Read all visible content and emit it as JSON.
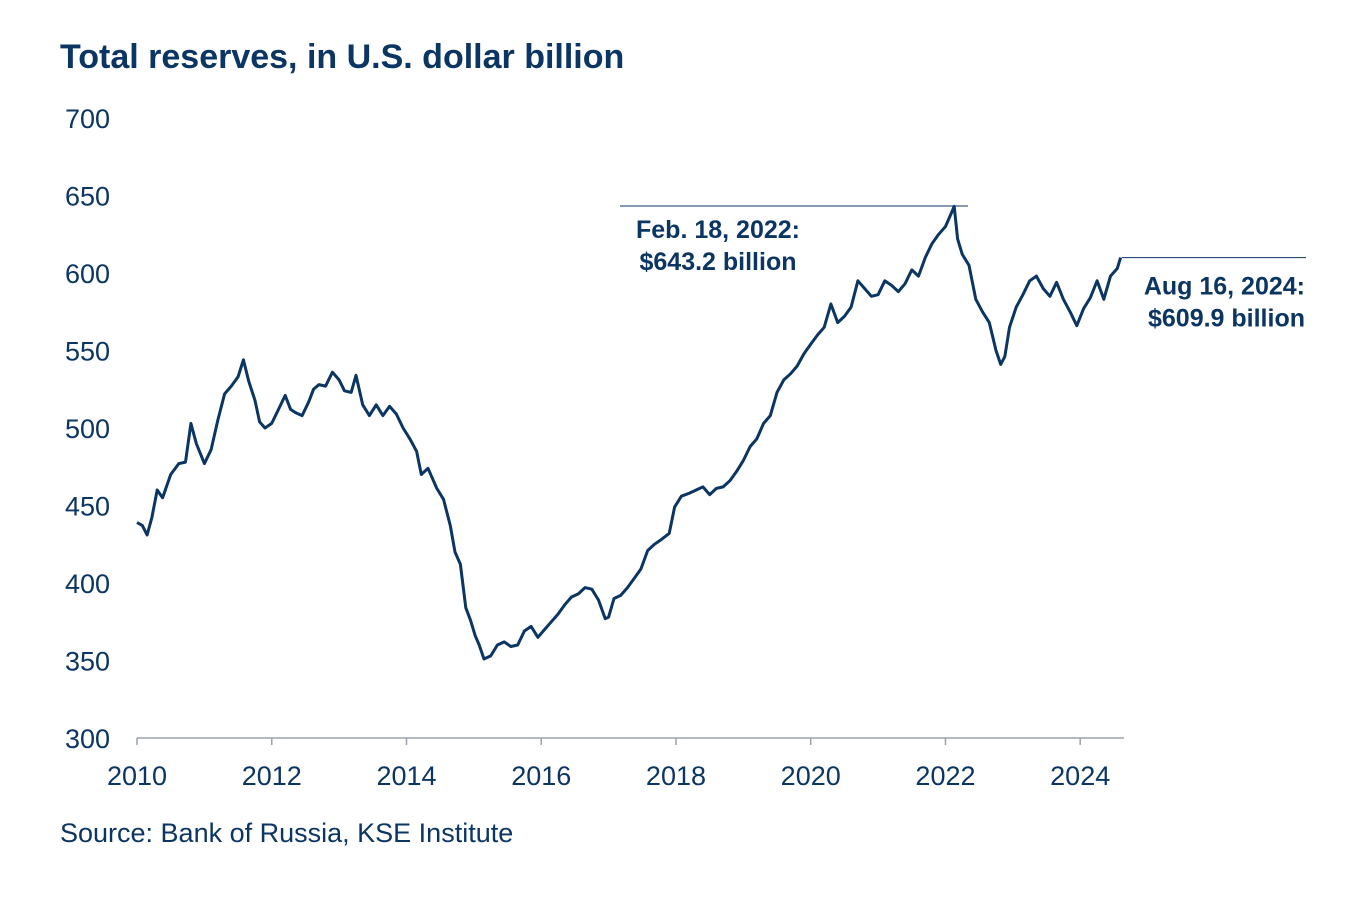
{
  "title": "Total reserves, in U.S. dollar billion",
  "source": "Source: Bank of Russia, KSE Institute",
  "colors": {
    "line": "#0b3562",
    "text": "#0b3562",
    "axis": "#9aa3ad"
  },
  "chart_data": {
    "type": "line",
    "title": "Total reserves, in U.S. dollar billion",
    "xlabel": "",
    "ylabel": "",
    "xlim": [
      2010,
      2024.65
    ],
    "ylim": [
      300,
      700
    ],
    "x_ticks": [
      "2010",
      "2012",
      "2014",
      "2016",
      "2018",
      "2020",
      "2022",
      "2024"
    ],
    "y_ticks": [
      "300",
      "350",
      "400",
      "450",
      "500",
      "550",
      "600",
      "650",
      "700"
    ],
    "grid": false,
    "series": [
      {
        "points": [
          [
            2010.0,
            439
          ],
          [
            2010.08,
            437
          ],
          [
            2010.15,
            431
          ],
          [
            2010.22,
            442
          ],
          [
            2010.3,
            460
          ],
          [
            2010.38,
            455
          ],
          [
            2010.5,
            470
          ],
          [
            2010.62,
            477
          ],
          [
            2010.72,
            478
          ],
          [
            2010.8,
            503
          ],
          [
            2010.88,
            490
          ],
          [
            2011.0,
            477
          ],
          [
            2011.1,
            486
          ],
          [
            2011.2,
            505
          ],
          [
            2011.3,
            522
          ],
          [
            2011.4,
            527
          ],
          [
            2011.5,
            533
          ],
          [
            2011.58,
            544
          ],
          [
            2011.66,
            530
          ],
          [
            2011.75,
            518
          ],
          [
            2011.82,
            504
          ],
          [
            2011.9,
            500
          ],
          [
            2012.0,
            503
          ],
          [
            2012.1,
            512
          ],
          [
            2012.2,
            521
          ],
          [
            2012.28,
            512
          ],
          [
            2012.35,
            510
          ],
          [
            2012.45,
            508
          ],
          [
            2012.55,
            517
          ],
          [
            2012.62,
            525
          ],
          [
            2012.7,
            528
          ],
          [
            2012.8,
            527
          ],
          [
            2012.9,
            536
          ],
          [
            2013.0,
            531
          ],
          [
            2013.08,
            524
          ],
          [
            2013.18,
            523
          ],
          [
            2013.25,
            534
          ],
          [
            2013.35,
            515
          ],
          [
            2013.45,
            508
          ],
          [
            2013.55,
            515
          ],
          [
            2013.65,
            508
          ],
          [
            2013.75,
            514
          ],
          [
            2013.85,
            509
          ],
          [
            2013.95,
            500
          ],
          [
            2014.05,
            493
          ],
          [
            2014.15,
            485
          ],
          [
            2014.22,
            470
          ],
          [
            2014.32,
            474
          ],
          [
            2014.45,
            461
          ],
          [
            2014.55,
            454
          ],
          [
            2014.65,
            437
          ],
          [
            2014.72,
            420
          ],
          [
            2014.8,
            412
          ],
          [
            2014.88,
            384
          ],
          [
            2014.95,
            376
          ],
          [
            2015.02,
            366
          ],
          [
            2015.08,
            360
          ],
          [
            2015.15,
            351
          ],
          [
            2015.25,
            353
          ],
          [
            2015.35,
            360
          ],
          [
            2015.45,
            362
          ],
          [
            2015.55,
            359
          ],
          [
            2015.65,
            360
          ],
          [
            2015.75,
            369
          ],
          [
            2015.85,
            372
          ],
          [
            2015.95,
            365
          ],
          [
            2016.05,
            370
          ],
          [
            2016.15,
            375
          ],
          [
            2016.25,
            380
          ],
          [
            2016.35,
            386
          ],
          [
            2016.45,
            391
          ],
          [
            2016.55,
            393
          ],
          [
            2016.65,
            397
          ],
          [
            2016.75,
            396
          ],
          [
            2016.85,
            389
          ],
          [
            2016.95,
            377
          ],
          [
            2017.0,
            378
          ],
          [
            2017.08,
            390
          ],
          [
            2017.18,
            392
          ],
          [
            2017.28,
            397
          ],
          [
            2017.38,
            403
          ],
          [
            2017.48,
            409
          ],
          [
            2017.58,
            421
          ],
          [
            2017.68,
            425
          ],
          [
            2017.78,
            428
          ],
          [
            2017.9,
            432
          ],
          [
            2017.98,
            449
          ],
          [
            2018.08,
            456
          ],
          [
            2018.2,
            458
          ],
          [
            2018.3,
            460
          ],
          [
            2018.4,
            462
          ],
          [
            2018.5,
            457
          ],
          [
            2018.6,
            461
          ],
          [
            2018.7,
            462
          ],
          [
            2018.8,
            466
          ],
          [
            2018.9,
            472
          ],
          [
            2019.0,
            479
          ],
          [
            2019.1,
            488
          ],
          [
            2019.2,
            493
          ],
          [
            2019.3,
            503
          ],
          [
            2019.4,
            508
          ],
          [
            2019.5,
            523
          ],
          [
            2019.6,
            531
          ],
          [
            2019.7,
            535
          ],
          [
            2019.8,
            540
          ],
          [
            2019.9,
            548
          ],
          [
            2020.0,
            554
          ],
          [
            2020.1,
            560
          ],
          [
            2020.2,
            565
          ],
          [
            2020.3,
            580
          ],
          [
            2020.4,
            568
          ],
          [
            2020.5,
            572
          ],
          [
            2020.6,
            578
          ],
          [
            2020.7,
            595
          ],
          [
            2020.8,
            590
          ],
          [
            2020.9,
            585
          ],
          [
            2021.0,
            586
          ],
          [
            2021.1,
            595
          ],
          [
            2021.2,
            592
          ],
          [
            2021.3,
            588
          ],
          [
            2021.4,
            593
          ],
          [
            2021.5,
            602
          ],
          [
            2021.6,
            598
          ],
          [
            2021.7,
            610
          ],
          [
            2021.8,
            619
          ],
          [
            2021.9,
            625
          ],
          [
            2022.0,
            630
          ],
          [
            2022.08,
            638
          ],
          [
            2022.13,
            643
          ],
          [
            2022.18,
            622
          ],
          [
            2022.25,
            612
          ],
          [
            2022.35,
            605
          ],
          [
            2022.45,
            583
          ],
          [
            2022.55,
            575
          ],
          [
            2022.65,
            568
          ],
          [
            2022.75,
            550
          ],
          [
            2022.82,
            541
          ],
          [
            2022.88,
            546
          ],
          [
            2022.95,
            565
          ],
          [
            2023.05,
            578
          ],
          [
            2023.15,
            586
          ],
          [
            2023.25,
            595
          ],
          [
            2023.35,
            598
          ],
          [
            2023.45,
            590
          ],
          [
            2023.55,
            585
          ],
          [
            2023.65,
            594
          ],
          [
            2023.75,
            583
          ],
          [
            2023.85,
            575
          ],
          [
            2023.95,
            566
          ],
          [
            2024.05,
            577
          ],
          [
            2024.15,
            584
          ],
          [
            2024.25,
            595
          ],
          [
            2024.35,
            583
          ],
          [
            2024.45,
            598
          ],
          [
            2024.55,
            603
          ],
          [
            2024.6,
            610
          ]
        ]
      }
    ],
    "annotations": [
      {
        "lines": [
          "Feb. 18, 2022:",
          "$643.2 billion"
        ],
        "x": 2022.13,
        "y": 643.2
      },
      {
        "lines": [
          "Aug 16, 2024:",
          "$609.9 billion"
        ],
        "x": 2024.62,
        "y": 609.9
      }
    ]
  }
}
